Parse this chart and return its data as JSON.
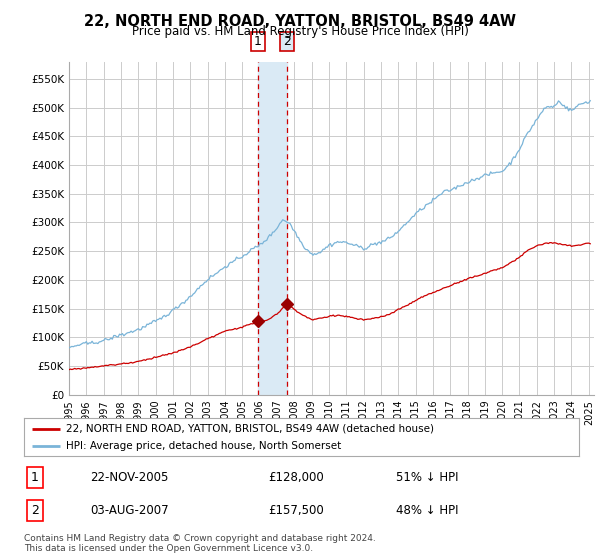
{
  "title": "22, NORTH END ROAD, YATTON, BRISTOL, BS49 4AW",
  "subtitle": "Price paid vs. HM Land Registry's House Price Index (HPI)",
  "legend_line1": "22, NORTH END ROAD, YATTON, BRISTOL, BS49 4AW (detached house)",
  "legend_line2": "HPI: Average price, detached house, North Somerset",
  "footnote": "Contains HM Land Registry data © Crown copyright and database right 2024.\nThis data is licensed under the Open Government Licence v3.0.",
  "transaction1_date": "22-NOV-2005",
  "transaction1_price": "£128,000",
  "transaction1_hpi": "51% ↓ HPI",
  "transaction2_date": "03-AUG-2007",
  "transaction2_price": "£157,500",
  "transaction2_hpi": "48% ↓ HPI",
  "hpi_color": "#7ab4d8",
  "price_paid_color": "#cc0000",
  "highlight_color": "#daeaf5",
  "marker_color": "#990000",
  "background_color": "#ffffff",
  "grid_color": "#cccccc",
  "ylim": [
    0,
    580000
  ],
  "yticks": [
    0,
    50000,
    100000,
    150000,
    200000,
    250000,
    300000,
    350000,
    400000,
    450000,
    500000,
    550000
  ],
  "ytick_labels": [
    "£0",
    "£50K",
    "£100K",
    "£150K",
    "£200K",
    "£250K",
    "£300K",
    "£350K",
    "£400K",
    "£450K",
    "£500K",
    "£550K"
  ],
  "transaction1_x": 2005.9,
  "transaction1_y": 128000,
  "transaction2_x": 2007.58,
  "transaction2_y": 157500,
  "highlight_x_start": 2005.9,
  "highlight_x_end": 2007.58,
  "xlim_start": 1995,
  "xlim_end": 2025.3,
  "xtick_years": [
    1995,
    1996,
    1997,
    1998,
    1999,
    2000,
    2001,
    2002,
    2003,
    2004,
    2005,
    2006,
    2007,
    2008,
    2009,
    2010,
    2011,
    2012,
    2013,
    2014,
    2015,
    2016,
    2017,
    2018,
    2019,
    2020,
    2021,
    2022,
    2023,
    2024,
    2025
  ]
}
